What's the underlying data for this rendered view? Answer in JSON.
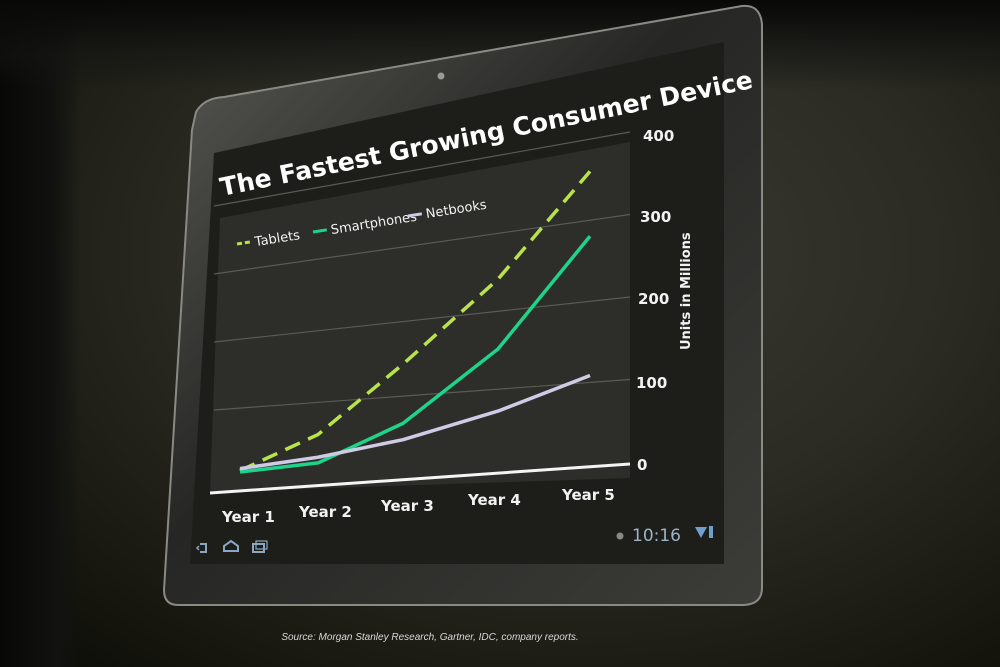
{
  "chart_data": {
    "type": "line",
    "title": "The Fastest Growing Consumer Device",
    "categories": [
      "Year 1",
      "Year 2",
      "Year 3",
      "Year 4",
      "Year 5"
    ],
    "series": [
      {
        "name": "Tablets",
        "values": [
          2,
          50,
          140,
          240,
          360
        ],
        "color": "#b8e34a",
        "dash": true
      },
      {
        "name": "Smartphones",
        "values": [
          0,
          10,
          60,
          150,
          280
        ],
        "color": "#1ed48a",
        "dash": false
      },
      {
        "name": "Netbooks",
        "values": [
          5,
          18,
          38,
          70,
          108
        ],
        "color": "#cfcbe6",
        "dash": false
      }
    ],
    "ylabel": "Units in Millions",
    "ylim": [
      0,
      400
    ],
    "yticks": [
      "0",
      "100",
      "200",
      "300",
      "400"
    ],
    "grid": true,
    "legend_position": "top-left"
  },
  "status_bar": {
    "time": "10:16"
  },
  "source_note": "Source: Morgan Stanley Research, Gartner, IDC, company reports."
}
